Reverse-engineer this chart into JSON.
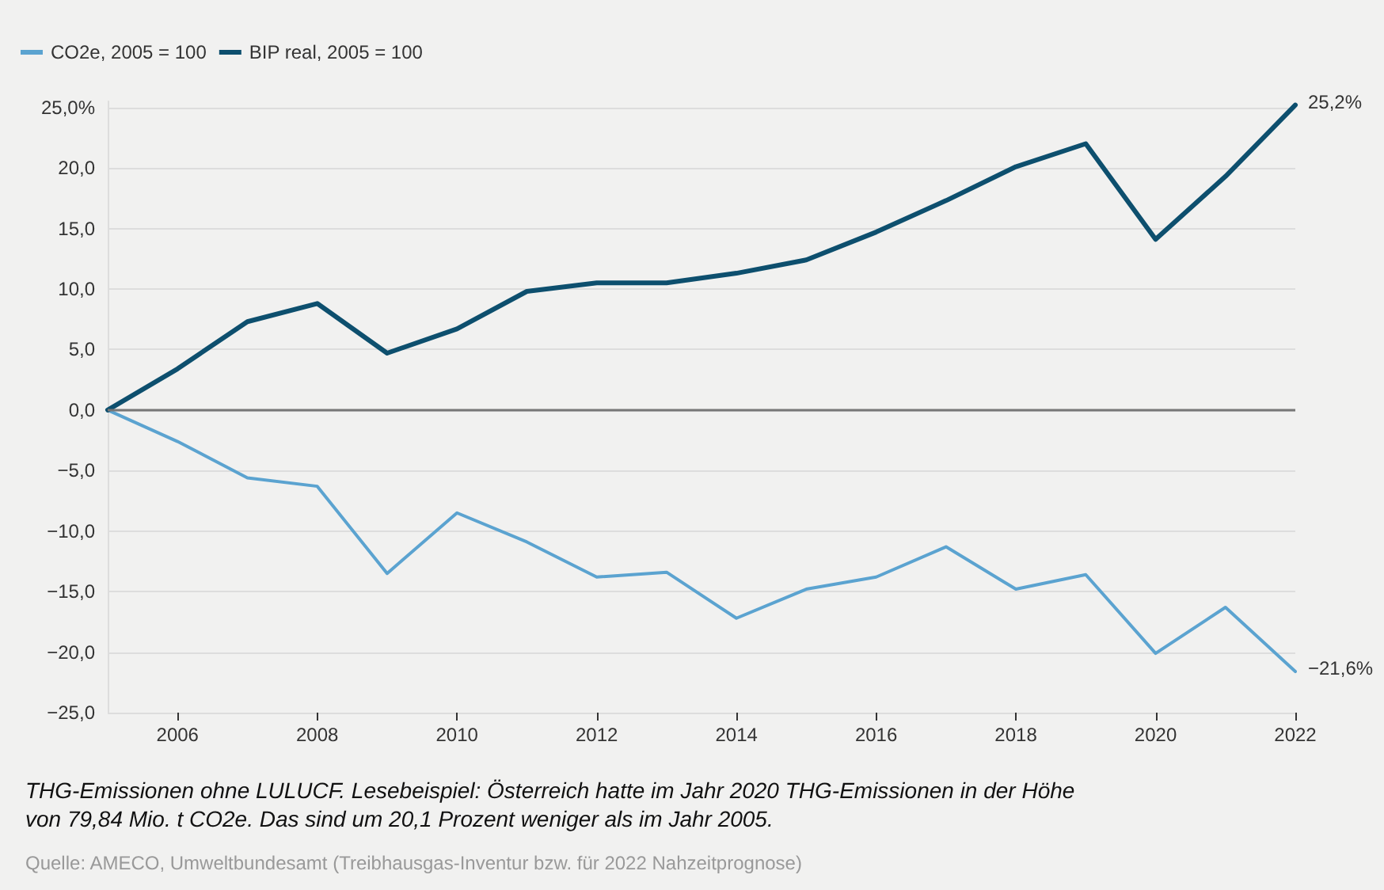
{
  "chart_data": {
    "type": "line",
    "x": [
      2005,
      2006,
      2007,
      2008,
      2009,
      2010,
      2011,
      2012,
      2013,
      2014,
      2015,
      2016,
      2017,
      2018,
      2019,
      2020,
      2021,
      2022
    ],
    "series": [
      {
        "name": "CO2e, 2005 = 100",
        "color": "#5ba3d0",
        "values": [
          0,
          -2.6,
          -5.6,
          -6.3,
          -13.5,
          -8.5,
          -10.9,
          -13.8,
          -13.4,
          -17.2,
          -14.8,
          -13.8,
          -11.3,
          -14.8,
          -13.6,
          -20.1,
          -16.3,
          -21.6
        ]
      },
      {
        "name": "BIP real, 2005 = 100",
        "color": "#0d4f6e",
        "values": [
          0,
          3.4,
          7.3,
          8.8,
          4.7,
          6.7,
          9.8,
          10.5,
          10.5,
          11.3,
          12.4,
          14.7,
          17.3,
          20.1,
          22.0,
          14.1,
          19.3,
          25.2
        ]
      }
    ],
    "xlim": [
      2005,
      2022
    ],
    "xticks": [
      2006,
      2008,
      2010,
      2012,
      2014,
      2016,
      2018,
      2020,
      2022
    ],
    "ylim": [
      -25,
      25.5
    ],
    "yticks": [
      {
        "value": -25,
        "label": "−25,0"
      },
      {
        "value": -20,
        "label": "−20,0"
      },
      {
        "value": -15,
        "label": "−15,0"
      },
      {
        "value": -10,
        "label": "−10,0"
      },
      {
        "value": -5,
        "label": "−5,0"
      },
      {
        "value": 0,
        "label": "0,0"
      },
      {
        "value": 5,
        "label": "5,0"
      },
      {
        "value": 10,
        "label": "10,0"
      },
      {
        "value": 15,
        "label": "15,0"
      },
      {
        "value": 20,
        "label": "20,0"
      },
      {
        "value": 25,
        "label": "25,0%"
      }
    ],
    "grid": "y",
    "legend": "top left",
    "marker": "none",
    "line_style": "solid",
    "ref_lines": [
      {
        "axis": "y",
        "value": 0,
        "color": "#777777"
      }
    ],
    "annotations": [
      {
        "text": "25,2%",
        "x": 2022,
        "y": 25.2
      },
      {
        "text": "−21,6%",
        "x": 2022,
        "y": -21.6
      },
      "THG-Emissionen ohne LULUCF. Lesebeispiel: Österreich hatte im Jahr 2020 THG-Emissionen in der Höhe von 79,84 Mio. t CO2e. Das sind um 20,1 Prozent weniger als im Jahr 2005.",
      "Quelle: AMECO, Umweltbundesamt (Treibhausgas-Inventur bzw. für 2022 Nahzeitprognose)"
    ]
  }
}
